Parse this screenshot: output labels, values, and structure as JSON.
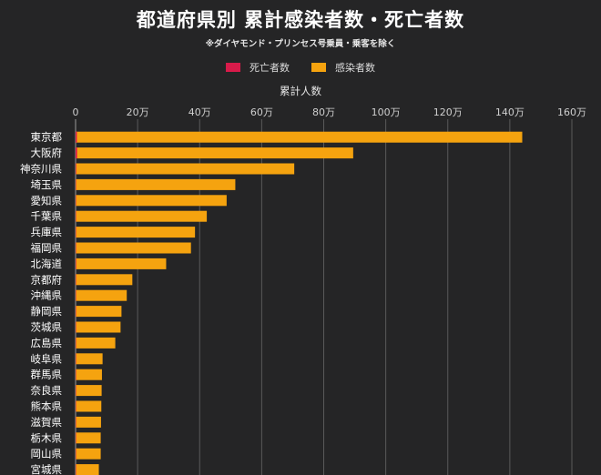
{
  "title": "都道府県別 累計感染者数・死亡者数",
  "subtitle": "※ダイヤモンド・プリンセス号乗員・乗客を除く",
  "legend": [
    {
      "label": "死亡者数",
      "color": "#d81b4a"
    },
    {
      "label": "感染者数",
      "color": "#f5a30f"
    }
  ],
  "chart_data": {
    "type": "bar",
    "orientation": "horizontal",
    "title": "都道府県別 累計感染者数・死亡者数",
    "subtitle": "※ダイヤモンド・プリンセス号乗員・乗客を除く",
    "xlabel": "累計人数",
    "xlim": [
      0,
      1600000
    ],
    "xticks": [
      0,
      200000,
      400000,
      600000,
      800000,
      1000000,
      1200000,
      1400000,
      1600000
    ],
    "xtick_labels": [
      "0",
      "20万",
      "40万",
      "60万",
      "80万",
      "100万",
      "120万",
      "140万",
      "160万"
    ],
    "categories": [
      "東京都",
      "大阪府",
      "神奈川県",
      "埼玉県",
      "愛知県",
      "千葉県",
      "兵庫県",
      "福岡県",
      "北海道",
      "京都府",
      "沖縄県",
      "静岡県",
      "茨城県",
      "広島県",
      "岐阜県",
      "群馬県",
      "奈良県",
      "熊本県",
      "滋賀県",
      "栃木県",
      "岡山県",
      "宮城県"
    ],
    "series": [
      {
        "name": "死亡者数",
        "color": "#d81b4a",
        "values": [
          4200,
          5000,
          2000,
          1200,
          1200,
          1200,
          1400,
          700,
          1900,
          500,
          300,
          200,
          200,
          200,
          200,
          200,
          200,
          200,
          100,
          100,
          100,
          100
        ]
      },
      {
        "name": "感染者数",
        "color": "#f5a30f",
        "values": [
          1440000,
          895000,
          705000,
          515000,
          487000,
          423000,
          385000,
          372000,
          292000,
          183000,
          165000,
          148000,
          145000,
          128000,
          87000,
          85000,
          84000,
          83000,
          82000,
          81000,
          81000,
          75000
        ]
      }
    ],
    "grid": "vertical",
    "legend_position": "top-center"
  }
}
